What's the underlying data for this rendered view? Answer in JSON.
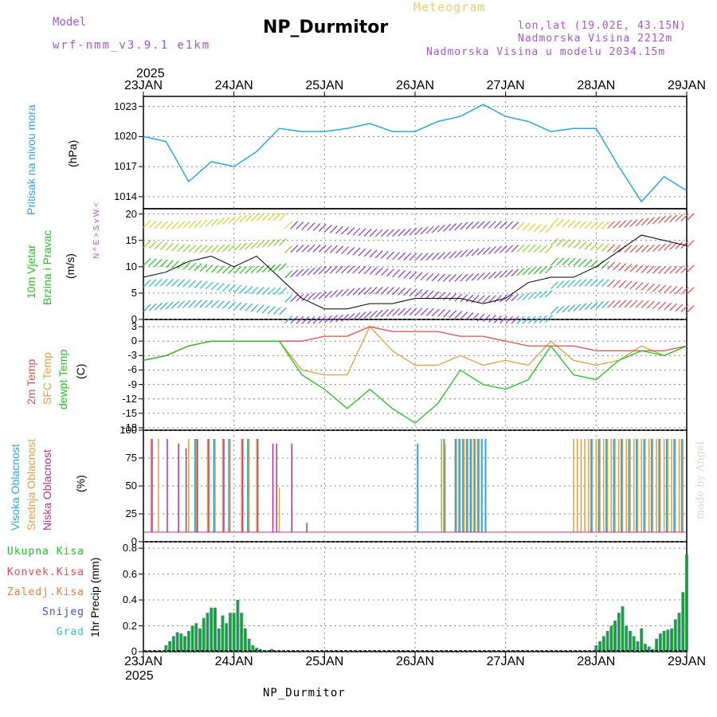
{
  "header": {
    "model_label": "Model",
    "model_name": "wrf-nmm_v3.9.1 e1km",
    "title": "NP_Durmitor",
    "subtitle": "Meteogram",
    "lonlat": "lon,lat (19.02E, 43.15N)",
    "altitude": "Nadmorska Visina 2212m",
    "model_altitude": "Nadmorska Visina u modelu 2034.15m",
    "year": "2025"
  },
  "footer": {
    "station": "NP_Durmitor",
    "year": "2025"
  },
  "watermark": "made by Angel",
  "dates": [
    "23JAN",
    "24JAN",
    "25JAN",
    "26JAN",
    "27JAN",
    "28JAN",
    "29JAN"
  ],
  "panels": {
    "pressure": {
      "label": "Pritisak na nivou mora",
      "unit": "(hPa)",
      "ticks": [
        "1023",
        "1020",
        "1017",
        "1014"
      ]
    },
    "wind": {
      "label1": "10m Vjetar",
      "label2": "Brzina i Pravac",
      "unit": "(m/s)",
      "ticks": [
        "20",
        "15",
        "10",
        "5",
        "0"
      ],
      "dir_glyph": "N ^ E > S v W <"
    },
    "temp": {
      "label1": "2m Temp",
      "label2": "SFC Temp",
      "label3": "dewpt Temp",
      "unit": "(C)",
      "ticks": [
        "3",
        "0",
        "-3",
        "-6",
        "-9",
        "-12",
        "-15",
        "-18"
      ]
    },
    "cloud": {
      "label1": "Visoka Oblacnost",
      "label2": "Srednja Oblacnost",
      "label3": "Niska Oblacnost",
      "unit": "(%)",
      "ticks": [
        "100",
        "75",
        "50",
        "25",
        "0"
      ]
    },
    "precip": {
      "label": "1hr Precip (mm)",
      "ticks": [
        "0.8",
        "0.6",
        "0.4",
        "0.2",
        "0"
      ],
      "legend": [
        "Ukupna Kisa",
        "Konvek.Kisa",
        "Zaledj.Kisa",
        "Snijeg",
        "Grad"
      ]
    }
  },
  "colors": {
    "pressure": "#29a8e0",
    "temp2m": "#e84a4a",
    "sfc": "#e0a040",
    "dewpt": "#22c422",
    "ukupna": "#22c422",
    "konvek": "#e84a4a",
    "zaledj": "#f08040",
    "snijeg": "#4a4ad6",
    "grad": "#3ac2c2",
    "high": "#29a8e0",
    "mid": "#e0a040",
    "low": "#c0308a"
  },
  "chart_data": [
    {
      "type": "line",
      "title": "Pritisak na nivou mora",
      "ylabel": "(hPa)",
      "ylim": [
        1012.8,
        1024
      ],
      "x_hours": [
        0,
        6,
        12,
        18,
        24,
        30,
        36,
        42,
        48,
        54,
        60,
        66,
        72,
        78,
        84,
        90,
        96,
        102,
        108,
        114,
        120,
        126,
        132,
        138,
        144
      ],
      "series": [
        {
          "name": "Pritisak na nivou mora",
          "values": [
            1020,
            1019.5,
            1015.5,
            1017.5,
            1017,
            1018.5,
            1020.8,
            1020.5,
            1020.5,
            1020.8,
            1021.3,
            1020.5,
            1020.5,
            1021.5,
            1022,
            1023.2,
            1022,
            1021.5,
            1020.5,
            1020.8,
            1020.8,
            1017,
            1013.5,
            1016,
            1014.6
          ]
        }
      ]
    },
    {
      "type": "line",
      "title": "10m Vjetar Brzina i Pravac",
      "ylabel": "(m/s)",
      "ylim": [
        0,
        21
      ],
      "x_hours": [
        0,
        6,
        12,
        18,
        24,
        30,
        36,
        42,
        48,
        54,
        60,
        66,
        72,
        78,
        84,
        90,
        96,
        102,
        108,
        114,
        120,
        126,
        132,
        138,
        144
      ],
      "series": [
        {
          "name": "10m Vjetar",
          "values": [
            8,
            9,
            11,
            12,
            10,
            12,
            8,
            4,
            2,
            2,
            3,
            3,
            4,
            4,
            4,
            3,
            4,
            7,
            8,
            8,
            10,
            13,
            16,
            15,
            14
          ]
        }
      ]
    },
    {
      "type": "line",
      "title": "2m Temp / SFC Temp / dewpt Temp",
      "ylabel": "(C)",
      "ylim": [
        -18.5,
        4.5
      ],
      "x_hours": [
        0,
        6,
        12,
        18,
        24,
        30,
        36,
        42,
        48,
        54,
        60,
        66,
        72,
        78,
        84,
        90,
        96,
        102,
        108,
        114,
        120,
        126,
        132,
        138,
        144
      ],
      "series": [
        {
          "name": "2m Temp",
          "values": [
            -4,
            -3,
            -1,
            0,
            0,
            0,
            0,
            0,
            1,
            1,
            3,
            2,
            2,
            2,
            1,
            1,
            0,
            -1,
            -1,
            -1,
            -2,
            -2,
            -2,
            -2,
            -1
          ]
        },
        {
          "name": "SFC Temp",
          "values": [
            -4,
            -3,
            -1,
            0,
            0,
            0,
            0,
            -6,
            -7,
            -7,
            3,
            -2,
            -5,
            -5,
            -3,
            -5,
            -4,
            -5,
            0,
            -4,
            -5,
            -4,
            -1,
            -3,
            -1
          ]
        },
        {
          "name": "dewpt Temp",
          "values": [
            -4,
            -3,
            -1,
            0,
            0,
            0,
            0,
            -7,
            -10,
            -14,
            -10,
            -14,
            -17,
            -13,
            -6,
            -9,
            -10,
            -8,
            -1,
            -7,
            -8,
            -4,
            -2,
            -3,
            -1
          ]
        }
      ]
    },
    {
      "type": "bar",
      "title": "Oblacnost",
      "ylabel": "(%)",
      "ylim": [
        0,
        100
      ],
      "x_hours": [
        2,
        4,
        6,
        9,
        11,
        12,
        14,
        17,
        19,
        21,
        23,
        26,
        28,
        30,
        34,
        35,
        36,
        39,
        43,
        73,
        79,
        80,
        83,
        84,
        85,
        86,
        87,
        88,
        89,
        90,
        91,
        114,
        115,
        116,
        117,
        118,
        119,
        120,
        121,
        122,
        123,
        124,
        125,
        126,
        127,
        128,
        129,
        130,
        131,
        132,
        133,
        134,
        135,
        136,
        137,
        138,
        139,
        140,
        141,
        142,
        143
      ],
      "series": [
        {
          "name": "Visoka Oblacnost",
          "values": [
            0,
            0,
            0,
            0,
            0,
            0,
            100,
            0,
            100,
            0,
            100,
            0,
            100,
            0,
            0,
            0,
            0,
            0,
            0,
            95,
            0,
            100,
            100,
            100,
            100,
            100,
            100,
            100,
            100,
            100,
            100,
            0,
            0,
            0,
            0,
            0,
            100,
            0,
            100,
            0,
            100,
            0,
            100,
            0,
            100,
            0,
            100,
            0,
            100,
            0,
            100,
            0,
            100,
            0,
            100,
            0,
            100,
            0,
            100,
            0,
            100
          ]
        },
        {
          "name": "Srednja Oblacnost",
          "values": [
            100,
            100,
            0,
            0,
            0,
            100,
            100,
            100,
            100,
            100,
            100,
            100,
            100,
            100,
            0,
            0,
            48,
            0,
            0,
            0,
            100,
            95,
            100,
            100,
            100,
            100,
            100,
            100,
            100,
            0,
            0,
            100,
            100,
            100,
            100,
            100,
            100,
            100,
            100,
            100,
            100,
            100,
            100,
            100,
            100,
            100,
            100,
            100,
            100,
            100,
            100,
            100,
            100,
            100,
            100,
            100,
            100,
            100,
            100,
            100,
            100
          ]
        },
        {
          "name": "Niska Oblacnost",
          "values": [
            100,
            0,
            100,
            95,
            90,
            0,
            100,
            100,
            0,
            100,
            0,
            100,
            0,
            100,
            95,
            95,
            0,
            95,
            10,
            0,
            0,
            0,
            0,
            0,
            0,
            0,
            0,
            0,
            0,
            0,
            0,
            0,
            0,
            0,
            0,
            0,
            0,
            0,
            0,
            0,
            0,
            0,
            0,
            0,
            0,
            0,
            0,
            0,
            0,
            0,
            0,
            0,
            0,
            0,
            0,
            0,
            0,
            0,
            0,
            0,
            0
          ]
        }
      ]
    },
    {
      "type": "bar",
      "title": "1hr Precip",
      "ylabel": "(mm)",
      "ylim": [
        0,
        0.85
      ],
      "x_hours": [
        6,
        7,
        8,
        9,
        10,
        11,
        12,
        13,
        14,
        15,
        16,
        17,
        18,
        19,
        20,
        21,
        22,
        23,
        24,
        25,
        26,
        27,
        28,
        29,
        30,
        31,
        32,
        33,
        34,
        120,
        121,
        122,
        123,
        124,
        125,
        126,
        127,
        128,
        129,
        130,
        131,
        132,
        133,
        134,
        135,
        136,
        137,
        138,
        139,
        140,
        141,
        142,
        143,
        144
      ],
      "series": [
        {
          "name": "Ukupna Kisa",
          "values": [
            0.05,
            0.08,
            0.12,
            0.15,
            0.14,
            0.12,
            0.16,
            0.2,
            0.22,
            0.18,
            0.26,
            0.3,
            0.34,
            0.34,
            0.18,
            0.28,
            0.22,
            0.3,
            0.3,
            0.4,
            0.3,
            0.18,
            0.1,
            0.05,
            0.03,
            0.02,
            0.01,
            0.01,
            0.02,
            0.05,
            0.08,
            0.12,
            0.16,
            0.2,
            0.24,
            0.3,
            0.35,
            0.2,
            0.16,
            0.12,
            0.08,
            0.18,
            0.06,
            0.04,
            0.02,
            0.1,
            0.14,
            0.16,
            0.17,
            0.18,
            0.25,
            0.3,
            0.46,
            0.75
          ]
        }
      ]
    }
  ]
}
